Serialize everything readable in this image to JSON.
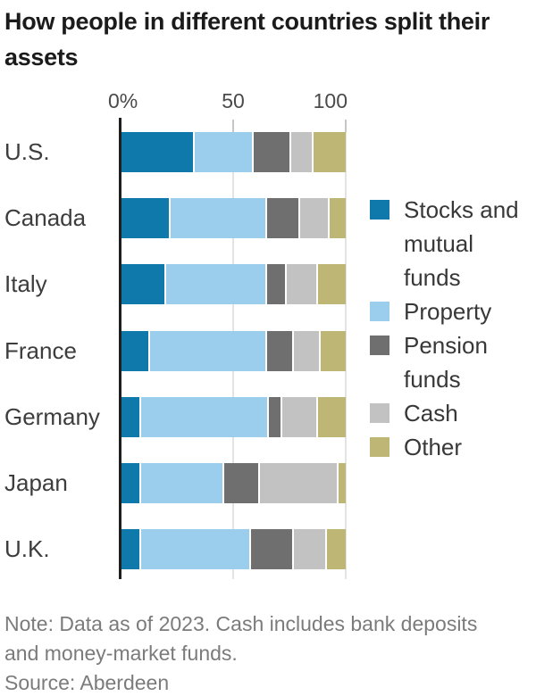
{
  "header": {
    "title": "How people in different countries split their\nassets"
  },
  "axis": {
    "ticks": [
      "0%",
      "50",
      "100"
    ]
  },
  "chart_data": {
    "type": "bar",
    "subtype": "horizontal-stacked",
    "title": "How people in different countries split their assets",
    "unit": "%",
    "categories": [
      "U.S.",
      "Canada",
      "Italy",
      "France",
      "Germany",
      "Japan",
      "U.K."
    ],
    "series": [
      {
        "name": "Stocks and mutual funds",
        "color": "#0e79aa",
        "values": [
          32,
          21,
          19,
          12,
          8,
          8,
          8
        ]
      },
      {
        "name": "Property",
        "color": "#9bcdec",
        "values": [
          26,
          43,
          45,
          52,
          57,
          37,
          49
        ]
      },
      {
        "name": "Pension funds",
        "color": "#6f6f6f",
        "values": [
          17,
          15,
          9,
          12,
          6,
          16,
          19
        ]
      },
      {
        "name": "Cash",
        "color": "#c2c2c2",
        "values": [
          10,
          13,
          14,
          12,
          16,
          35,
          15
        ]
      },
      {
        "name": "Other",
        "color": "#bdb674",
        "values": [
          15,
          8,
          13,
          12,
          13,
          4,
          9
        ]
      }
    ],
    "xlim": [
      0,
      100
    ],
    "x_ticks": [
      0,
      50,
      100
    ],
    "grid": "vertical",
    "legend_position": "right"
  },
  "legend": {
    "items": [
      {
        "label": "Stocks and\nmutual\nfunds",
        "color": "#0e79aa"
      },
      {
        "label": "Property",
        "color": "#9bcdec"
      },
      {
        "label": "Pension\nfunds",
        "color": "#6f6f6f"
      },
      {
        "label": "Cash",
        "color": "#c2c2c2"
      },
      {
        "label": "Other",
        "color": "#bdb674"
      }
    ]
  },
  "footer": {
    "note": "Note: Data as of 2023. Cash includes bank deposits\nand money-market funds.",
    "source": "Source: Aberdeen"
  }
}
